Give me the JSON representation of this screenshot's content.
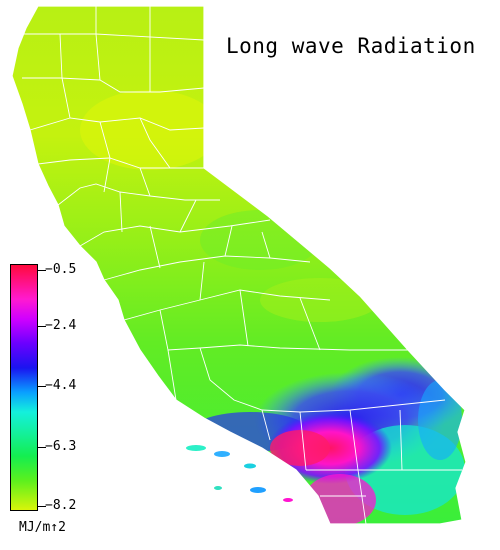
{
  "title": "Long wave Radiation",
  "legend": {
    "ticks": [
      "−0.5",
      "−2.4",
      "−4.4",
      "−6.3",
      "−8.2"
    ],
    "units": "MJ/m↑2",
    "range": [
      -8.2,
      -0.5
    ],
    "colors": {
      "max": "#ff0a3c",
      "high": "#ff1ad0",
      "mid_high": "#1a14f0",
      "mid": "#0aa0ff",
      "mid_low": "#14ee50",
      "min": "#d8f50a"
    }
  },
  "map": {
    "region": "California",
    "boundaries": "county lines",
    "pattern": "lowest values (yellow-green) in the northern interior; highest values (red/magenta) over the Los Angeles basin"
  }
}
